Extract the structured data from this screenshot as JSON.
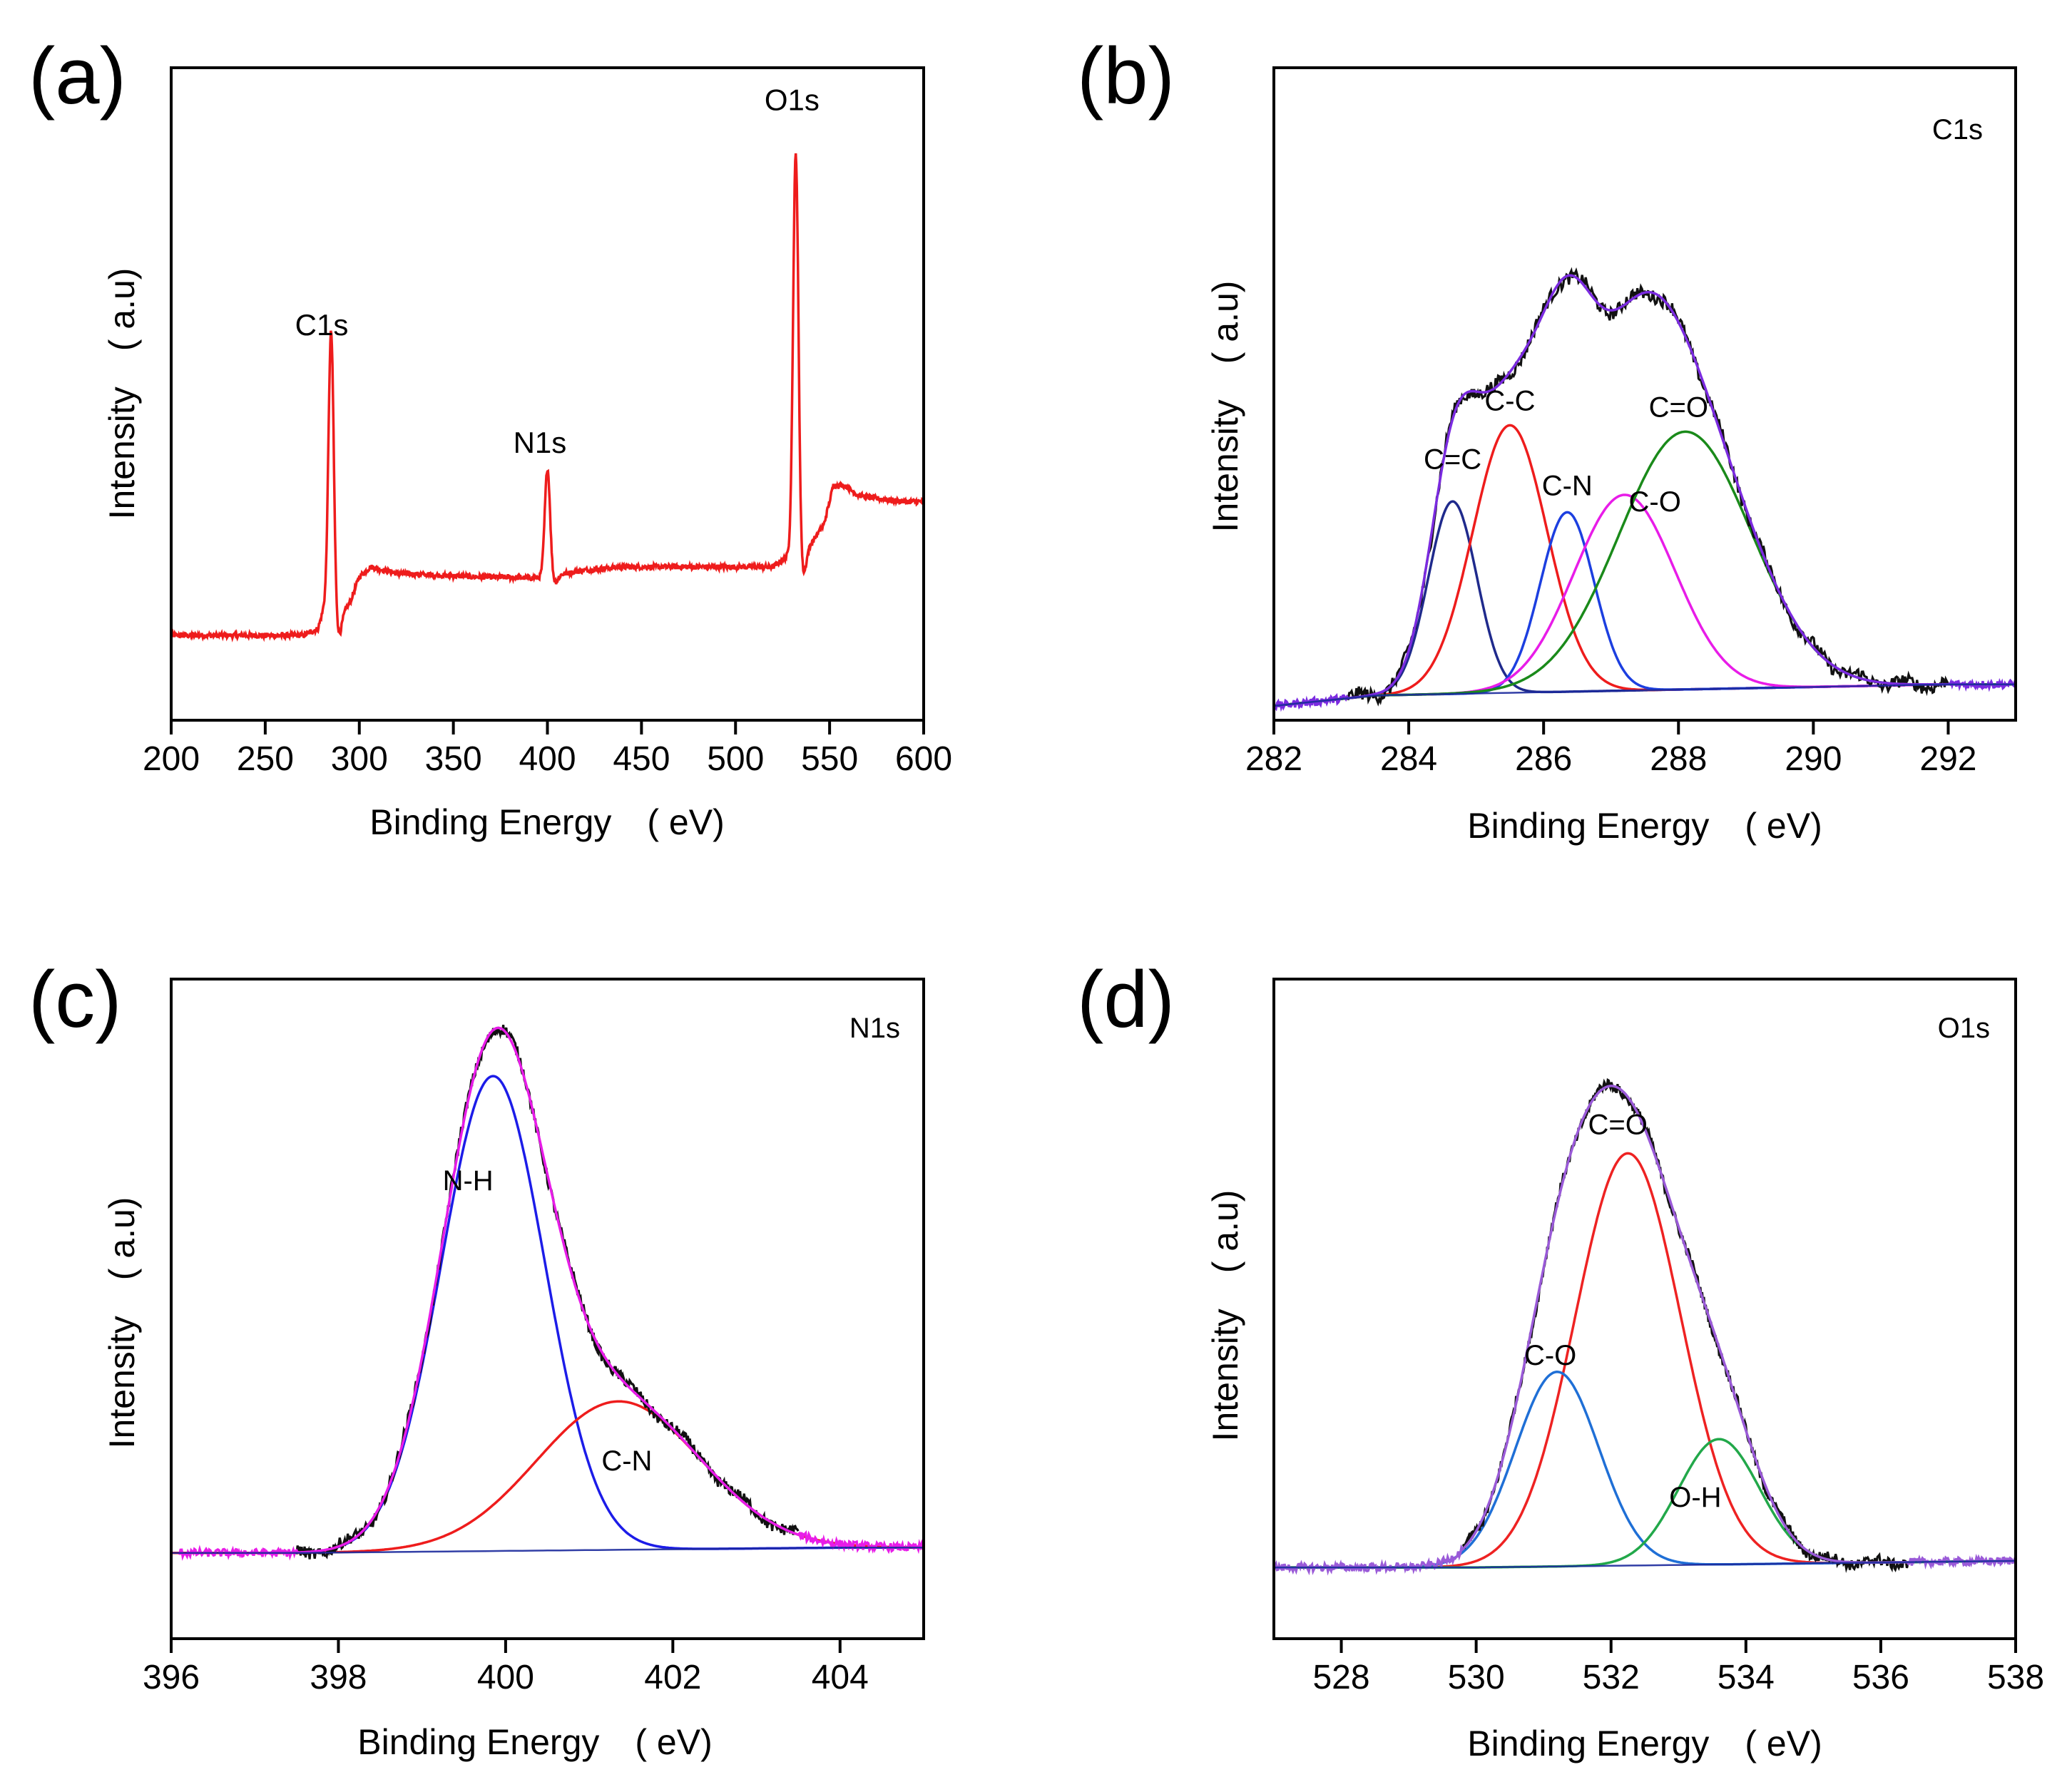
{
  "chart_data": [
    {
      "panel": "(a)",
      "type": "line",
      "title": "",
      "xlabel": "Binding Energy　( eV)",
      "ylabel": "Intensity　( a.u)",
      "xlim": [
        200,
        600
      ],
      "ylim": [
        0,
        1
      ],
      "xticks": [
        200,
        250,
        300,
        350,
        400,
        450,
        500,
        550,
        600
      ],
      "xtick_labels": [
        "200",
        "250",
        "300",
        "350",
        "400",
        "450",
        "500",
        "550",
        "600"
      ],
      "x_reversed": false,
      "color": "#ee1c1c",
      "baseline": [
        [
          200,
          0.13
        ],
        [
          270,
          0.13
        ],
        [
          278,
          0.14
        ],
        [
          281,
          0.17
        ],
        [
          290,
          0.16
        ],
        [
          295,
          0.18
        ],
        [
          300,
          0.22
        ],
        [
          306,
          0.235
        ],
        [
          320,
          0.225
        ],
        [
          360,
          0.22
        ],
        [
          395,
          0.218
        ],
        [
          410,
          0.225
        ],
        [
          420,
          0.23
        ],
        [
          440,
          0.235
        ],
        [
          470,
          0.235
        ],
        [
          510,
          0.235
        ],
        [
          520,
          0.235
        ],
        [
          527,
          0.25
        ],
        [
          540,
          0.27
        ],
        [
          547,
          0.3
        ],
        [
          552,
          0.36
        ],
        [
          558,
          0.36
        ],
        [
          565,
          0.345
        ],
        [
          575,
          0.34
        ],
        [
          590,
          0.335
        ],
        [
          600,
          0.335
        ]
      ],
      "noise": 0.004,
      "peaks": [
        {
          "label": "C1s",
          "center": 285,
          "height": 0.43,
          "width": 1.4
        },
        {
          "label": "N1s",
          "center": 400,
          "height": 0.165,
          "width": 1.4
        },
        {
          "label": "O1s",
          "center": 532,
          "height": 0.61,
          "width": 1.4
        }
      ],
      "annotations": [
        {
          "text": "C1s",
          "x": 280,
          "y": 0.59
        },
        {
          "text": "N1s",
          "x": 396,
          "y": 0.41
        },
        {
          "text": "O1s",
          "x": 530,
          "y": 0.935
        }
      ]
    },
    {
      "panel": "(b)",
      "type": "line",
      "title": "C1s",
      "xlabel": "Binding Energy　( eV)",
      "ylabel": "Intensity　( a.u)",
      "xlim": [
        282,
        293
      ],
      "ylim": [
        0,
        1
      ],
      "xticks": [
        282,
        284,
        286,
        288,
        290,
        292
      ],
      "xtick_labels": [
        "282",
        "284",
        "286",
        "288",
        "290",
        "292"
      ],
      "x_reversed": false,
      "background": [
        [
          282,
          0.022
        ],
        [
          283.5,
          0.038
        ],
        [
          292,
          0.055
        ],
        [
          293,
          0.055
        ]
      ],
      "components": [
        {
          "name": "C=C",
          "center": 284.65,
          "height": 0.295,
          "sigma": 0.36,
          "color": "#1f2a8c",
          "label_x": 284.65,
          "label_y": 0.385
        },
        {
          "name": "C-C",
          "center": 285.5,
          "height": 0.41,
          "sigma": 0.55,
          "color": "#ee1c1c",
          "label_x": 285.5,
          "label_y": 0.475
        },
        {
          "name": "C-N",
          "center": 286.35,
          "height": 0.275,
          "sigma": 0.4,
          "color": "#1c3fe0",
          "label_x": 286.35,
          "label_y": 0.345
        },
        {
          "name": "C-O",
          "center": 287.2,
          "height": 0.3,
          "sigma": 0.75,
          "color": "#e81ce8",
          "label_x": 287.65,
          "label_y": 0.32
        },
        {
          "name": "C=O",
          "center": 288.1,
          "height": 0.395,
          "sigma": 0.98,
          "color": "#1a8a1a",
          "label_x": 288.0,
          "label_y": 0.465
        }
      ],
      "envelope_color": "#7b2be0",
      "raw_color": "#111111",
      "raw_noise": 0.01,
      "raw_range": [
        283.1,
        292
      ],
      "envelope_range": [
        282,
        293
      ]
    },
    {
      "panel": "(c)",
      "type": "line",
      "title": "N1s",
      "xlabel": "Binding Energy　( eV)",
      "ylabel": "Intensity　( a.u)",
      "xlim": [
        396,
        405
      ],
      "ylim": [
        0,
        1
      ],
      "xticks": [
        396,
        398,
        400,
        402,
        404
      ],
      "xtick_labels": [
        "396",
        "398",
        "400",
        "402",
        "404"
      ],
      "x_reversed": false,
      "background": [
        [
          396,
          0.13
        ],
        [
          397.5,
          0.13
        ],
        [
          404,
          0.138
        ],
        [
          405,
          0.138
        ]
      ],
      "components": [
        {
          "name": "N-H",
          "center": 399.85,
          "height": 0.72,
          "sigma": 0.62,
          "color": "#1c1ce8",
          "label_x": 399.55,
          "label_y": 0.68
        },
        {
          "name": "C-N",
          "center": 401.35,
          "height": 0.225,
          "sigma": 0.98,
          "color": "#ee1c1c",
          "label_x": 401.45,
          "label_y": 0.255
        }
      ],
      "envelope_color": "#e81ce8",
      "raw_color": "#111111",
      "raw_noise": 0.009,
      "raw_range": [
        397.5,
        403.5
      ],
      "envelope_range": [
        396.1,
        405
      ]
    },
    {
      "panel": "(d)",
      "type": "line",
      "title": "O1s",
      "xlabel": "Binding Energy　( eV)",
      "ylabel": "Intensity　( a.u)",
      "xlim": [
        527,
        538
      ],
      "ylim": [
        0,
        1
      ],
      "xticks": [
        528,
        530,
        532,
        534,
        536,
        538
      ],
      "xtick_labels": [
        "528",
        "530",
        "532",
        "534",
        "536",
        "538"
      ],
      "x_reversed": false,
      "background": [
        [
          527,
          0.108
        ],
        [
          530,
          0.108
        ],
        [
          538,
          0.118
        ]
      ],
      "components": [
        {
          "name": "C=O",
          "center": 532.25,
          "height": 0.625,
          "sigma": 0.78,
          "color": "#ee2222",
          "label_x": 532.1,
          "label_y": 0.765
        },
        {
          "name": "C-O",
          "center": 531.2,
          "height": 0.295,
          "sigma": 0.62,
          "color": "#1f6fd6",
          "label_x": 531.1,
          "label_y": 0.415
        },
        {
          "name": "O-H",
          "center": 533.6,
          "height": 0.19,
          "sigma": 0.6,
          "color": "#22a84a",
          "label_x": 533.25,
          "label_y": 0.2
        }
      ],
      "envelope_color": "#9a5ad8",
      "raw_color": "#111111",
      "raw_noise": 0.008,
      "raw_range": [
        529.8,
        536.4
      ],
      "envelope_range": [
        527,
        538
      ]
    }
  ]
}
